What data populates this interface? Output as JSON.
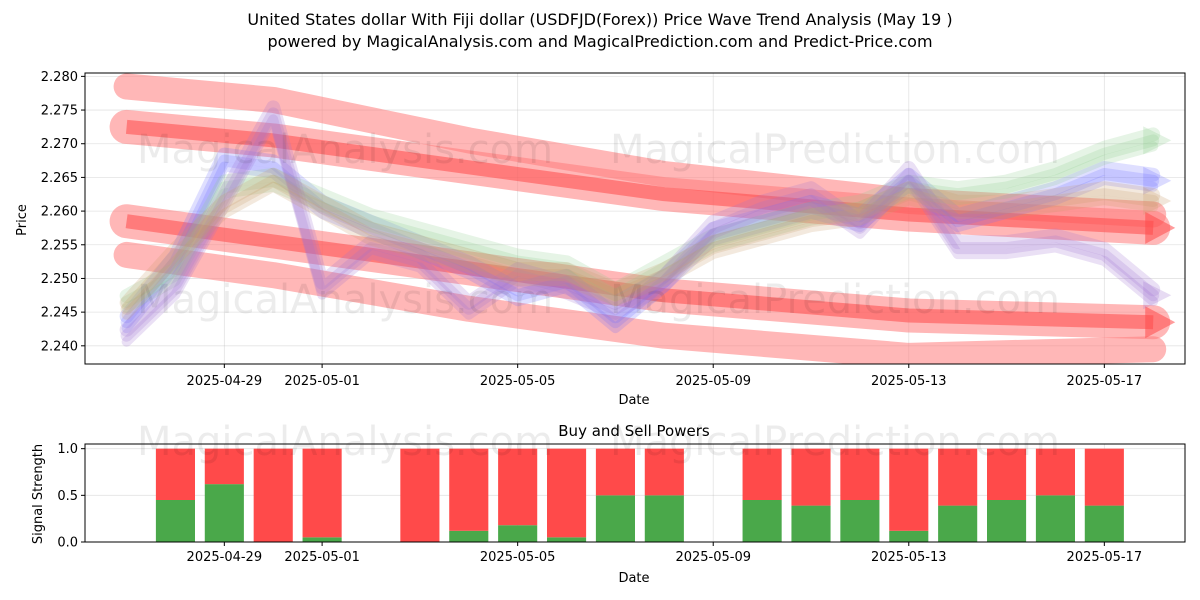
{
  "title_line1": "United States dollar With Fiji dollar (USDFJD(Forex)) Price Wave Trend Analysis (May 19 )",
  "title_line2": "powered by MagicalAnalysis.com and MagicalPrediction.com and Predict-Price.com",
  "watermarks": [
    "MagicalAnalysis.com",
    "MagicalPrediction.com"
  ],
  "colors": {
    "up": "#4aa84a",
    "down": "#ff4a4a",
    "band": "#ff7b7b",
    "blue": "#6e6eff",
    "green": "#8ccb8c",
    "purple": "#a070d0"
  },
  "chart_data": [
    {
      "type": "line",
      "title": "",
      "xlabel": "Date",
      "ylabel": "Price",
      "x_range": [
        "2025-04-27",
        "2025-05-18"
      ],
      "ylim": [
        2.2373,
        2.2805
      ],
      "y_ticks": [
        "2.240",
        "2.245",
        "2.250",
        "2.255",
        "2.260",
        "2.265",
        "2.270",
        "2.275",
        "2.280"
      ],
      "x_ticks": [
        "2025-04-29",
        "2025-05-01",
        "2025-05-05",
        "2025-05-09",
        "2025-05-13",
        "2025-05-17"
      ],
      "series": [
        {
          "name": "wave-blue",
          "color": "blue",
          "x": [
            "2025-04-27",
            "2025-04-28",
            "2025-04-29",
            "2025-04-30",
            "2025-05-01",
            "2025-05-02",
            "2025-05-03",
            "2025-05-04",
            "2025-05-05",
            "2025-05-06",
            "2025-05-07",
            "2025-05-08",
            "2025-05-09",
            "2025-05-10",
            "2025-05-11",
            "2025-05-12",
            "2025-05-13",
            "2025-05-14",
            "2025-05-15",
            "2025-05-16",
            "2025-05-17",
            "2025-05-18"
          ],
          "values": [
            2.2435,
            2.2525,
            2.2675,
            2.2665,
            2.2605,
            2.2575,
            2.2545,
            2.2515,
            2.2475,
            2.2495,
            2.2435,
            2.2495,
            2.2565,
            2.2585,
            2.2605,
            2.2585,
            2.2645,
            2.2585,
            2.2605,
            2.2625,
            2.2655,
            2.2645
          ]
        },
        {
          "name": "wave-green",
          "color": "green",
          "x": [
            "2025-04-27",
            "2025-04-28",
            "2025-04-29",
            "2025-04-30",
            "2025-05-01",
            "2025-05-02",
            "2025-05-03",
            "2025-05-04",
            "2025-05-05",
            "2025-05-06",
            "2025-05-07",
            "2025-05-08",
            "2025-05-09",
            "2025-05-10",
            "2025-05-11",
            "2025-05-12",
            "2025-05-13",
            "2025-05-14",
            "2025-05-15",
            "2025-05-16",
            "2025-05-17",
            "2025-05-18"
          ],
          "values": [
            2.2465,
            2.2505,
            2.2635,
            2.2645,
            2.2615,
            2.2585,
            2.2565,
            2.2545,
            2.2525,
            2.2515,
            2.2475,
            2.2515,
            2.2555,
            2.2575,
            2.2595,
            2.2605,
            2.2635,
            2.2625,
            2.2635,
            2.2655,
            2.2685,
            2.2705
          ]
        },
        {
          "name": "wave-purple",
          "color": "purple",
          "x": [
            "2025-04-27",
            "2025-04-28",
            "2025-04-29",
            "2025-04-30",
            "2025-05-01",
            "2025-05-02",
            "2025-05-03",
            "2025-05-04",
            "2025-05-05",
            "2025-05-06",
            "2025-05-07",
            "2025-05-08",
            "2025-05-09",
            "2025-05-10",
            "2025-05-11",
            "2025-05-12",
            "2025-05-13",
            "2025-05-14",
            "2025-05-15",
            "2025-05-16",
            "2025-05-17",
            "2025-05-18"
          ],
          "values": [
            2.2415,
            2.2485,
            2.2615,
            2.2745,
            2.2485,
            2.2545,
            2.2525,
            2.2455,
            2.2505,
            2.2485,
            2.2455,
            2.2495,
            2.2575,
            2.2605,
            2.2625,
            2.2575,
            2.2655,
            2.2545,
            2.2545,
            2.2555,
            2.2535,
            2.2475
          ]
        },
        {
          "name": "wave-tan",
          "color": "#c89a6a",
          "x": [
            "2025-04-27",
            "2025-04-28",
            "2025-04-29",
            "2025-04-30",
            "2025-05-01",
            "2025-05-02",
            "2025-05-03",
            "2025-05-04",
            "2025-05-05",
            "2025-05-06",
            "2025-05-07",
            "2025-05-08",
            "2025-05-09",
            "2025-05-10",
            "2025-05-11",
            "2025-05-12",
            "2025-05-13",
            "2025-05-14",
            "2025-05-15",
            "2025-05-16",
            "2025-05-17",
            "2025-05-18"
          ],
          "values": [
            2.2455,
            2.2535,
            2.2605,
            2.2645,
            2.2605,
            2.2565,
            2.2545,
            2.2525,
            2.2505,
            2.2505,
            2.2475,
            2.2505,
            2.2545,
            2.2565,
            2.2585,
            2.2595,
            2.2625,
            2.2605,
            2.2605,
            2.2615,
            2.2625,
            2.2615
          ]
        }
      ],
      "bands": [
        {
          "name": "upper-trend",
          "x": [
            "2025-04-27",
            "2025-04-30",
            "2025-05-04",
            "2025-05-08",
            "2025-05-13",
            "2025-05-18"
          ],
          "values": [
            2.2725,
            2.2705,
            2.2665,
            2.2625,
            2.2595,
            2.2575
          ]
        },
        {
          "name": "lower-trend",
          "x": [
            "2025-04-27",
            "2025-04-30",
            "2025-05-04",
            "2025-05-08",
            "2025-05-13",
            "2025-05-18"
          ],
          "values": [
            2.2585,
            2.2555,
            2.2515,
            2.2475,
            2.2445,
            2.2435
          ]
        },
        {
          "name": "outer-trend",
          "x": [
            "2025-04-27",
            "2025-04-30",
            "2025-05-04",
            "2025-05-08",
            "2025-05-13",
            "2025-05-18"
          ],
          "values": [
            2.2785,
            2.2765,
            2.2705,
            2.2655,
            2.2615,
            2.2595
          ]
        },
        {
          "name": "bottom-trend",
          "x": [
            "2025-04-27",
            "2025-04-30",
            "2025-05-04",
            "2025-05-08",
            "2025-05-13",
            "2025-05-18"
          ],
          "values": [
            2.2535,
            2.2505,
            2.2455,
            2.2415,
            2.2385,
            2.2395
          ]
        }
      ]
    },
    {
      "type": "bar",
      "title": "Buy and Sell Powers",
      "xlabel": "Date",
      "ylabel": "Signal Strength",
      "ylim": [
        0,
        1.05
      ],
      "y_ticks": [
        "0.0",
        "0.5",
        "1.0"
      ],
      "x_range": [
        "2025-04-27",
        "2025-05-18"
      ],
      "x_ticks": [
        "2025-04-29",
        "2025-05-01",
        "2025-05-05",
        "2025-05-09",
        "2025-05-13",
        "2025-05-17"
      ],
      "categories": [
        "2025-04-28",
        "2025-04-29",
        "2025-04-30",
        "2025-05-01",
        "2025-05-03",
        "2025-05-04",
        "2025-05-05",
        "2025-05-06",
        "2025-05-07",
        "2025-05-08",
        "2025-05-10",
        "2025-05-11",
        "2025-05-12",
        "2025-05-13",
        "2025-05-14",
        "2025-05-15",
        "2025-05-16",
        "2025-05-17"
      ],
      "series": [
        {
          "name": "Buy",
          "color": "up",
          "values": [
            0.45,
            0.62,
            0.0,
            0.05,
            0.0,
            0.12,
            0.18,
            0.05,
            0.5,
            0.5,
            0.45,
            0.39,
            0.45,
            0.12,
            0.39,
            0.45,
            0.5,
            0.39
          ]
        },
        {
          "name": "Sell",
          "color": "down",
          "values": [
            0.55,
            0.38,
            1.0,
            0.95,
            1.0,
            0.88,
            0.82,
            0.95,
            0.5,
            0.5,
            0.55,
            0.61,
            0.55,
            0.88,
            0.61,
            0.55,
            0.5,
            0.61
          ]
        }
      ]
    }
  ]
}
